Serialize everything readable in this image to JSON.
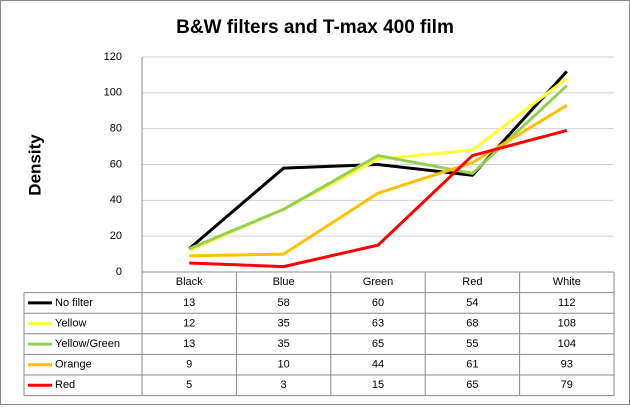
{
  "chart_data": {
    "type": "line",
    "title": "B&W filters  and T-max 400 film",
    "y_label": "Density",
    "categories": [
      "Black",
      "Blue",
      "Green",
      "Red",
      "White"
    ],
    "series": [
      {
        "name": "No filter",
        "color": "#000000",
        "values": [
          13,
          58,
          60,
          54,
          112
        ]
      },
      {
        "name": "Yellow",
        "color": "#ffff33",
        "values": [
          12,
          35,
          63,
          68,
          108
        ]
      },
      {
        "name": "Yellow/Green",
        "color": "#92d050",
        "values": [
          13,
          35,
          65,
          55,
          104
        ]
      },
      {
        "name": "Orange",
        "color": "#ffc000",
        "values": [
          9,
          10,
          44,
          61,
          93
        ]
      },
      {
        "name": "Red",
        "color": "#ff0000",
        "values": [
          5,
          3,
          15,
          65,
          79
        ]
      }
    ],
    "ylim": [
      0,
      120
    ],
    "yticks": [
      0,
      20,
      40,
      60,
      80,
      100,
      120
    ],
    "grid": true
  }
}
